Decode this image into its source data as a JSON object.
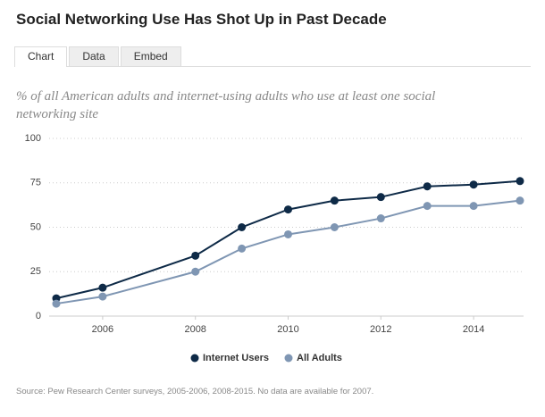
{
  "title": "Social Networking Use Has Shot Up in Past Decade",
  "tabs": [
    "Chart",
    "Data",
    "Embed"
  ],
  "source": "Source: Pew Research Center surveys, 2005-2006, 2008-2015. No data are available for 2007.",
  "chart_data": {
    "type": "line",
    "subtitle": "% of all American adults and internet-using adults who use at least one social networking site",
    "x": [
      2005,
      2006,
      2008,
      2009,
      2010,
      2011,
      2012,
      2013,
      2014,
      2015
    ],
    "series": [
      {
        "name": "Internet Users",
        "color": "#0e2a47",
        "values": [
          10,
          16,
          34,
          50,
          60,
          65,
          67,
          73,
          74,
          76
        ]
      },
      {
        "name": "All Adults",
        "color": "#7f96b3",
        "values": [
          7,
          11,
          25,
          38,
          46,
          50,
          55,
          62,
          62,
          65
        ]
      }
    ],
    "xlim": [
      2005,
      2015
    ],
    "xticks": [
      2006,
      2008,
      2010,
      2012,
      2014
    ],
    "ylim": [
      0,
      100
    ],
    "yticks": [
      0,
      25,
      50,
      75,
      100
    ],
    "grid": true
  }
}
